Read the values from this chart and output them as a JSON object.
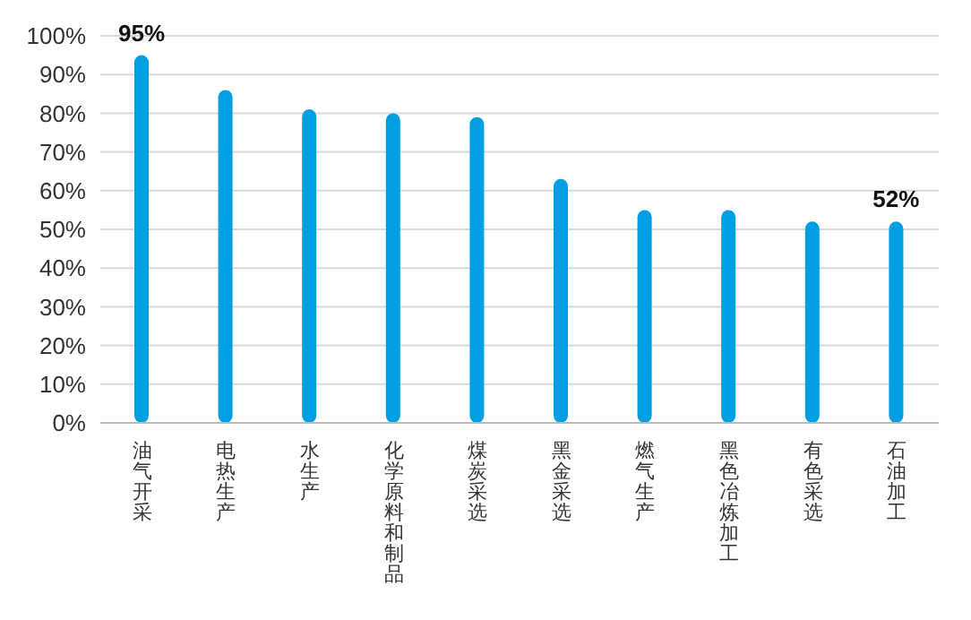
{
  "chart_data": {
    "type": "bar",
    "categories": [
      "油气开采",
      "电热生产",
      "水生产",
      "化学原料和制品",
      "煤炭采选",
      "黑金采选",
      "燃气生产",
      "黑色冶炼加工",
      "有色采选",
      "石油加工"
    ],
    "values": [
      95,
      86,
      81,
      80,
      79,
      63,
      55,
      55,
      52,
      52
    ],
    "value_labels": [
      "95%",
      null,
      null,
      null,
      null,
      null,
      null,
      null,
      null,
      "52%"
    ],
    "color": "#009fe3",
    "ylim": [
      0,
      100
    ],
    "yticks": [
      {
        "value": 0,
        "label": "0%"
      },
      {
        "value": 10,
        "label": "10%"
      },
      {
        "value": 20,
        "label": "20%"
      },
      {
        "value": 30,
        "label": "30%"
      },
      {
        "value": 40,
        "label": "40%"
      },
      {
        "value": 50,
        "label": "50%"
      },
      {
        "value": 60,
        "label": "60%"
      },
      {
        "value": 70,
        "label": "70%"
      },
      {
        "value": 80,
        "label": "80%"
      },
      {
        "value": 90,
        "label": "90%"
      },
      {
        "value": 100,
        "label": "100%"
      }
    ],
    "grid": "y"
  }
}
